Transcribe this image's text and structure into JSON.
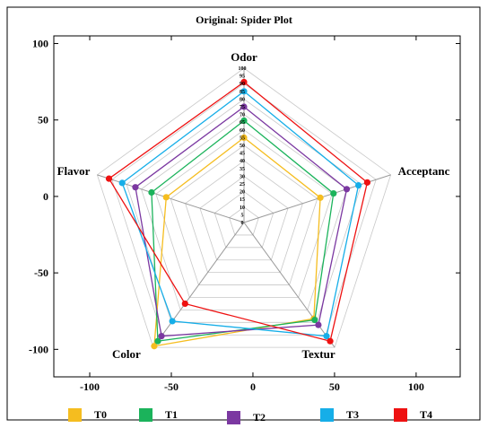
{
  "chart_data": {
    "type": "radar",
    "title": "Original: Spider Plot",
    "axes": [
      "Odor",
      "Acceptanc",
      "Textur",
      "Color",
      "Flavor"
    ],
    "radial_range": [
      0,
      100
    ],
    "radial_ticks": [
      0,
      5,
      10,
      15,
      20,
      25,
      30,
      35,
      40,
      45,
      50,
      55,
      60,
      65,
      70,
      75,
      80,
      85,
      90,
      95,
      100
    ],
    "x_ticks": [
      -100,
      -50,
      0,
      50,
      100
    ],
    "y_ticks": [
      100,
      50,
      0,
      -50,
      -100
    ],
    "xlim": [
      -122,
      127
    ],
    "ylim": [
      -118,
      105
    ],
    "series": [
      {
        "name": "T0",
        "color": "#f5bd1f",
        "values": [
          55,
          52,
          77,
          99,
          53
        ]
      },
      {
        "name": "T1",
        "color": "#1bb35b",
        "values": [
          66,
          61,
          78,
          95,
          63
        ]
      },
      {
        "name": "T2",
        "color": "#7b38a1",
        "values": [
          75,
          70,
          82,
          91,
          74
        ]
      },
      {
        "name": "T3",
        "color": "#16aee8",
        "values": [
          85,
          78,
          91,
          79,
          83
        ]
      },
      {
        "name": "T4",
        "color": "#ee1111",
        "values": [
          91,
          84,
          95,
          65,
          92
        ]
      }
    ],
    "grid": true,
    "legend_position": "bottom"
  },
  "legend": [
    {
      "label": "T0",
      "color": "#f5bd1f"
    },
    {
      "label": "T1",
      "color": "#1bb35b"
    },
    {
      "label": "T2",
      "color": "#7b38a1"
    },
    {
      "label": "T3",
      "color": "#16aee8"
    },
    {
      "label": "T4",
      "color": "#ee1111"
    }
  ]
}
